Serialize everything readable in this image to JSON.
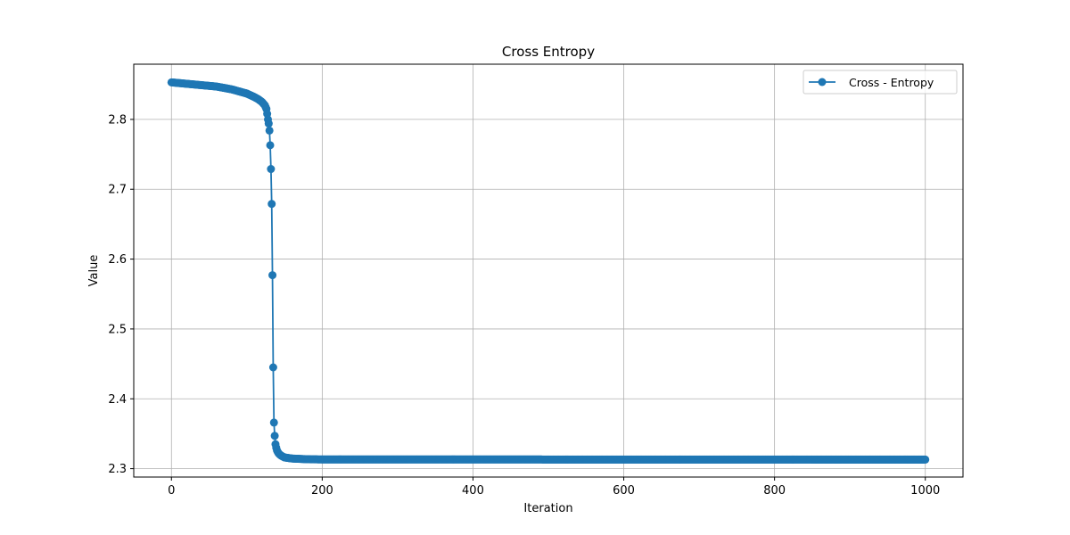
{
  "chart_data": {
    "type": "line",
    "title": "Cross Entropy",
    "xlabel": "Iteration",
    "ylabel": "Value",
    "xlim": [
      -50,
      1050
    ],
    "ylim": [
      2.288,
      2.879
    ],
    "xticks": [
      0,
      200,
      400,
      600,
      800,
      1000
    ],
    "yticks": [
      2.3,
      2.4,
      2.5,
      2.6,
      2.7,
      2.8
    ],
    "xtick_labels": [
      "0",
      "200",
      "400",
      "600",
      "800",
      "1000"
    ],
    "ytick_labels": [
      "2.3",
      "2.4",
      "2.5",
      "2.6",
      "2.7",
      "2.8"
    ],
    "grid": true,
    "legend": {
      "position": "top-right"
    },
    "series": [
      {
        "name": "Cross - Entropy",
        "color": "#1f77b4",
        "marker": "circle",
        "note": "1001 points, one per iteration 0..1000",
        "key_points": [
          [
            0,
            2.853
          ],
          [
            20,
            2.851
          ],
          [
            40,
            2.849
          ],
          [
            60,
            2.847
          ],
          [
            80,
            2.843
          ],
          [
            100,
            2.837
          ],
          [
            110,
            2.832
          ],
          [
            115,
            2.829
          ],
          [
            120,
            2.825
          ],
          [
            124,
            2.82
          ],
          [
            126,
            2.815
          ],
          [
            127,
            2.808
          ],
          [
            128,
            2.8
          ],
          [
            129,
            2.794
          ],
          [
            130,
            2.784
          ],
          [
            131,
            2.763
          ],
          [
            132,
            2.729
          ],
          [
            133,
            2.679
          ],
          [
            134,
            2.577
          ],
          [
            135,
            2.445
          ],
          [
            136,
            2.366
          ],
          [
            137,
            2.347
          ],
          [
            138,
            2.335
          ],
          [
            139,
            2.33
          ],
          [
            140,
            2.326
          ],
          [
            142,
            2.322
          ],
          [
            145,
            2.319
          ],
          [
            150,
            2.316
          ],
          [
            160,
            2.3145
          ],
          [
            180,
            2.3135
          ],
          [
            200,
            2.3132
          ],
          [
            1000,
            2.313
          ]
        ]
      }
    ]
  }
}
